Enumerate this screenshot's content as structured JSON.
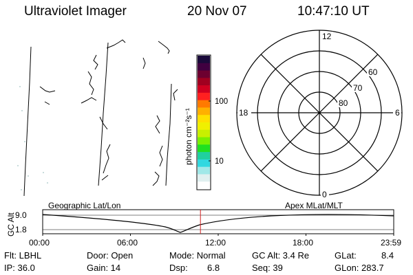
{
  "header": {
    "title": "Ultraviolet Imager",
    "date": "20 Nov 07",
    "time": "10:47:10 UT"
  },
  "colorbar": {
    "unit_label": "photon cm⁻²s⁻¹",
    "tick_100": "100",
    "tick_10": "10",
    "colors": [
      "#1a0a3a",
      "#400040",
      "#6d0030",
      "#a00020",
      "#d00020",
      "#ff2020",
      "#ff7a00",
      "#ffb000",
      "#ffe000",
      "#f0f000",
      "#c8f000",
      "#7af000",
      "#20e020",
      "#20d0a0",
      "#30d8e0",
      "#a0e8e8",
      "#e0f0f0",
      "#ffffff"
    ]
  },
  "polar_plot": {
    "mlt_labels": {
      "top": "12",
      "left": "18",
      "right": "6",
      "bottom": "0"
    },
    "lat_labels": [
      "60",
      "70",
      "80"
    ]
  },
  "orbit_panel": {
    "y_axis_label": "GC Alt",
    "y_ticks": [
      "9.0",
      "1.8"
    ],
    "left_caption": "Geographic Lat/Lon",
    "right_caption": "Apex MLat/MLT",
    "time_ticks": [
      "00:00",
      "06:00",
      "12:00",
      "18:00",
      "23:59"
    ],
    "current_time_fraction": 0.4494
  },
  "info": {
    "filter": "Flt: LBHL",
    "door": "Door: Open",
    "mode": "Mode: Normal",
    "gc_alt": "GC Alt: 3.4 Re",
    "glat": "GLat:",
    "glat_val": "8.4",
    "ip": "IP: 36.0",
    "gain": "Gain: 14",
    "dsp": "Dsp:",
    "dsp_val": "6.8",
    "seq": "Seq: 39",
    "glon": "GLon: 283.7"
  }
}
